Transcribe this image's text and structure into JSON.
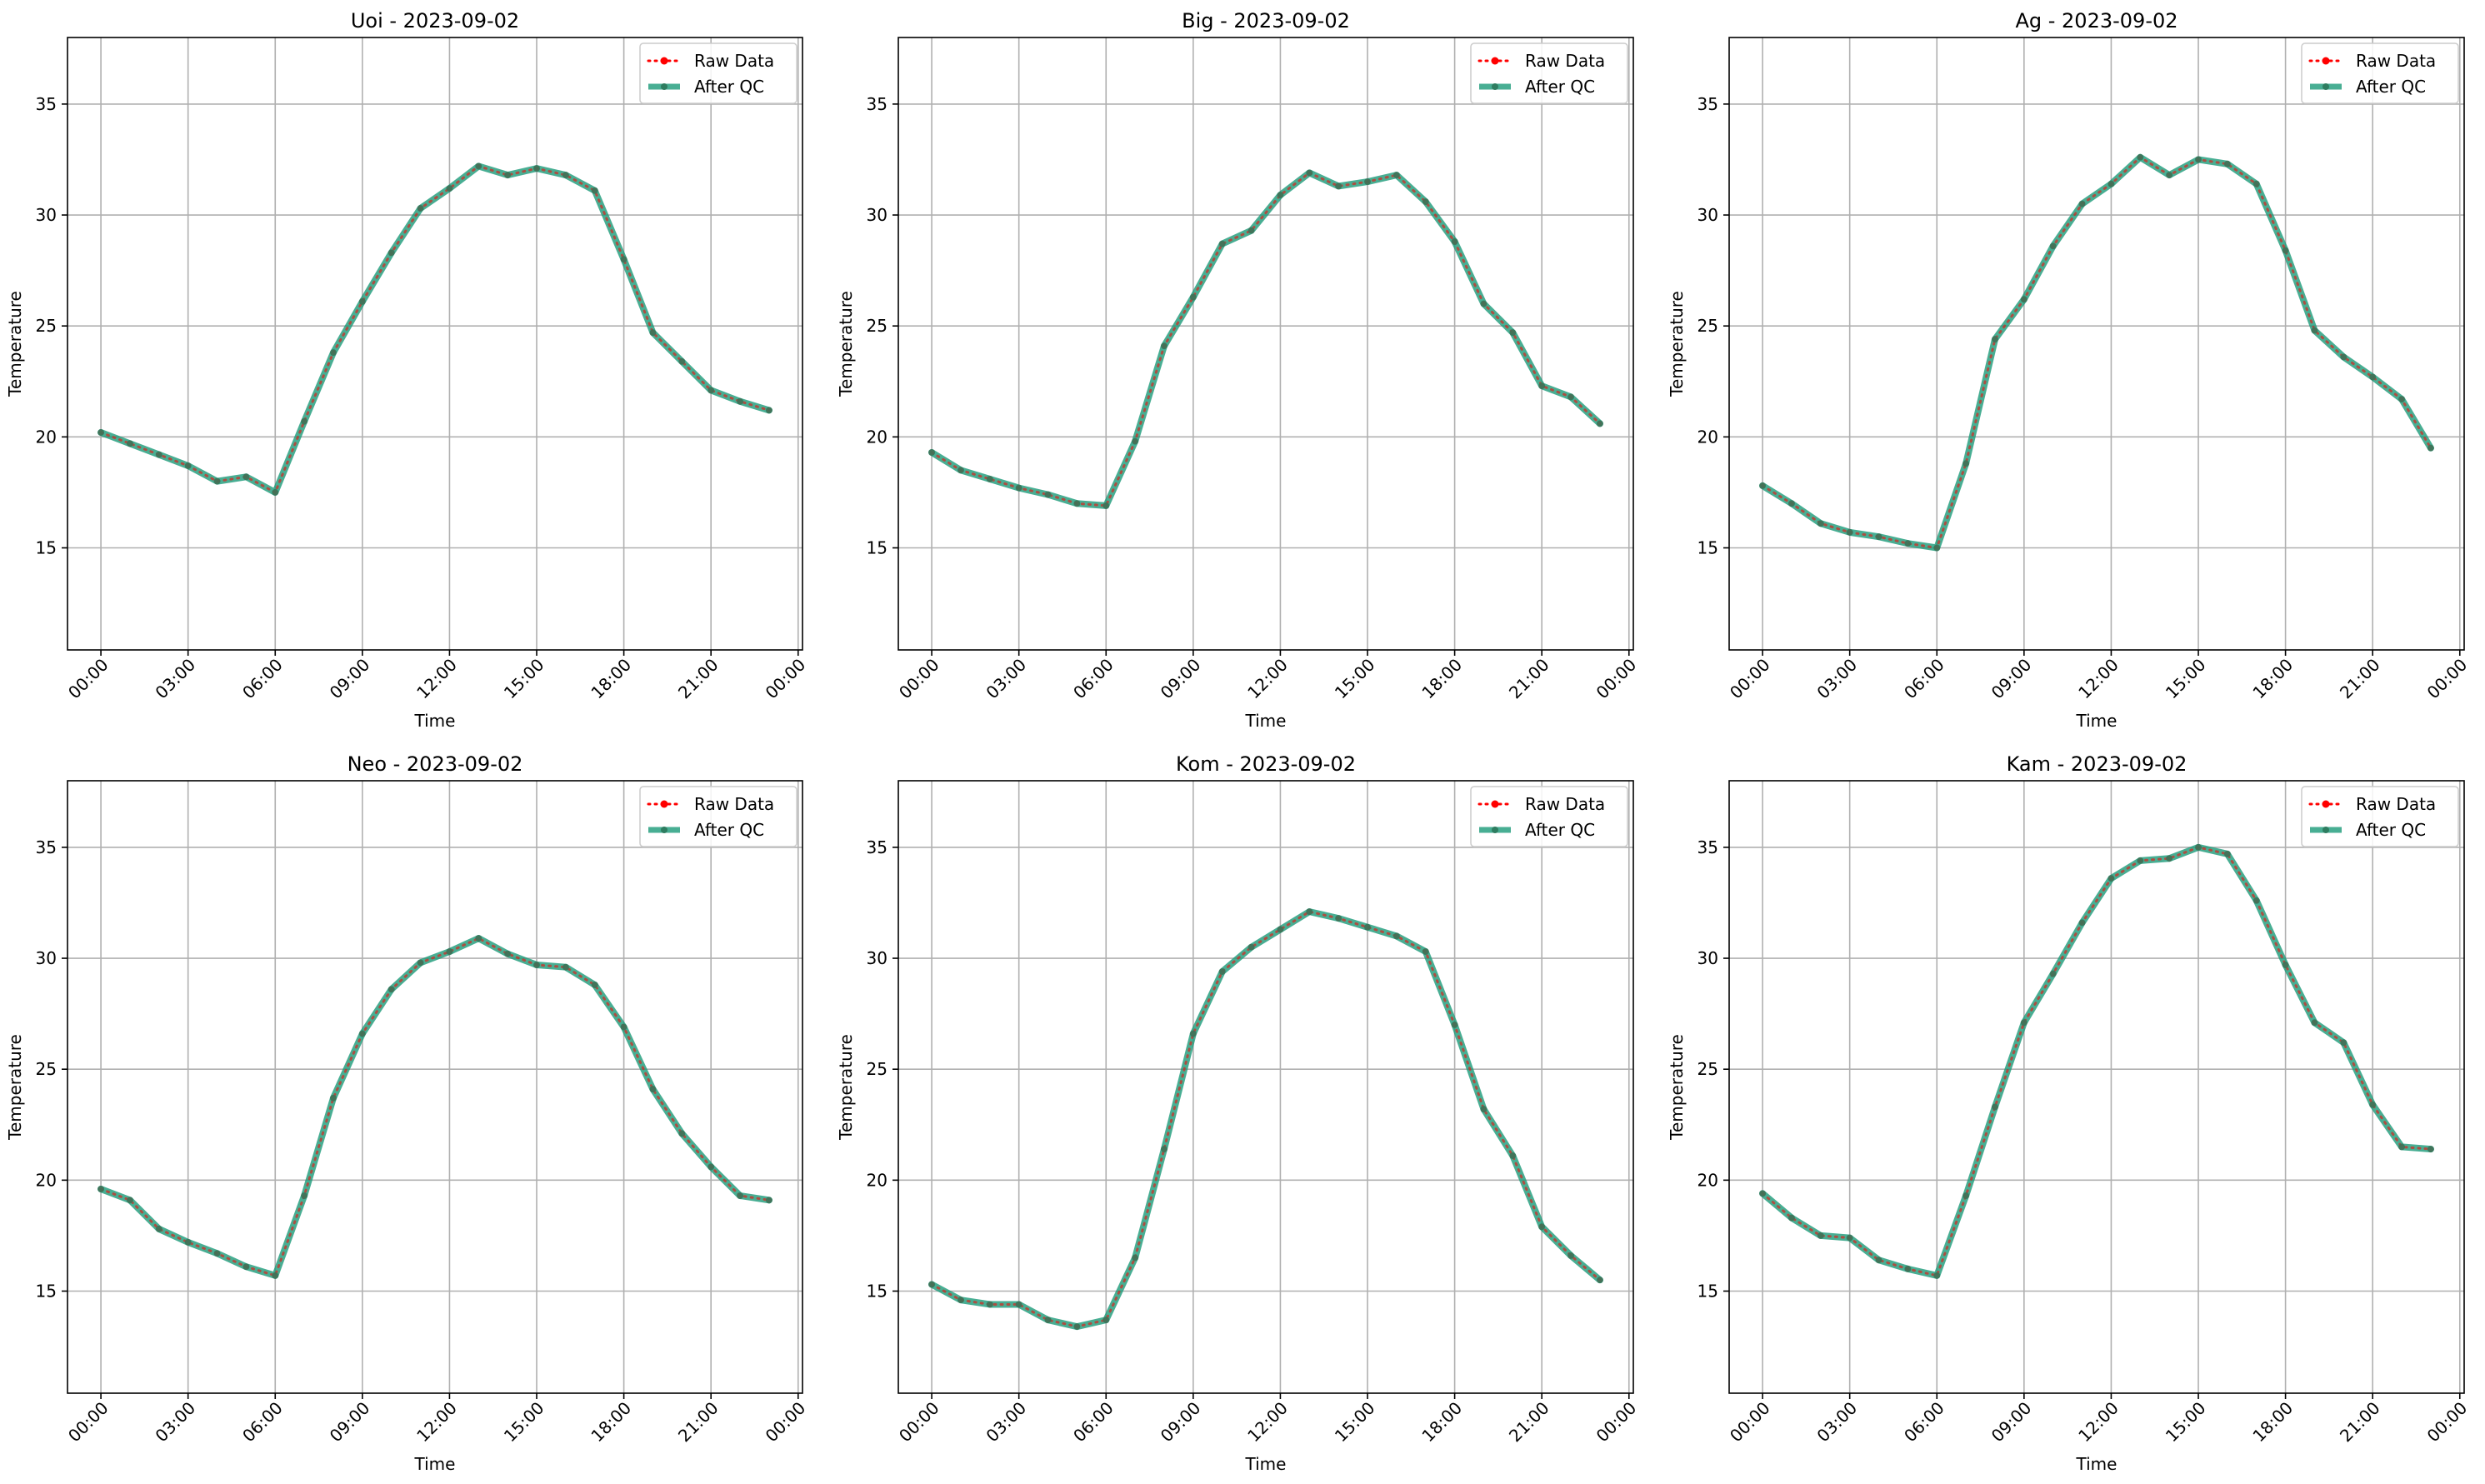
{
  "legend": {
    "raw_label": "Raw Data",
    "qc_label": "After QC",
    "raw_color": "#ff0000",
    "qc_color": "#1a9a78",
    "marker_color": "#2e7d60"
  },
  "grid": true,
  "chart_data": [
    {
      "type": "line",
      "title": "Uoi - 2023-09-02",
      "xlabel": "Time",
      "ylabel": "Temperature",
      "xlim": [
        -1.15,
        24.15
      ],
      "ylim": [
        10.4,
        38.0
      ],
      "xticks": [
        0,
        3,
        6,
        9,
        12,
        15,
        18,
        21,
        24
      ],
      "xticklabels": [
        "00:00",
        "03:00",
        "06:00",
        "09:00",
        "12:00",
        "15:00",
        "18:00",
        "21:00",
        "00:00"
      ],
      "yticks": [
        15,
        20,
        25,
        30,
        35
      ],
      "legend_position": "top-right",
      "x": [
        0,
        1,
        2,
        3,
        4,
        5,
        6,
        7,
        8,
        9,
        10,
        11,
        12,
        13,
        14,
        15,
        16,
        17,
        18,
        19,
        20,
        21,
        22,
        23
      ],
      "series": [
        {
          "name": "Raw Data",
          "values": [
            20.2,
            19.7,
            19.2,
            18.7,
            18.0,
            18.2,
            17.5,
            20.7,
            23.8,
            26.1,
            28.3,
            30.3,
            31.2,
            32.2,
            31.8,
            32.1,
            31.8,
            31.1,
            28.0,
            24.7,
            23.4,
            22.1,
            21.6,
            21.2
          ]
        },
        {
          "name": "After QC",
          "values": [
            20.2,
            19.7,
            19.2,
            18.7,
            18.0,
            18.2,
            17.5,
            20.7,
            23.8,
            26.1,
            28.3,
            30.3,
            31.2,
            32.2,
            31.8,
            32.1,
            31.8,
            31.1,
            28.0,
            24.7,
            23.4,
            22.1,
            21.6,
            21.2
          ]
        }
      ]
    },
    {
      "type": "line",
      "title": "Big - 2023-09-02",
      "xlabel": "Time",
      "ylabel": "Temperature",
      "xlim": [
        -1.15,
        24.15
      ],
      "ylim": [
        10.4,
        38.0
      ],
      "xticks": [
        0,
        3,
        6,
        9,
        12,
        15,
        18,
        21,
        24
      ],
      "xticklabels": [
        "00:00",
        "03:00",
        "06:00",
        "09:00",
        "12:00",
        "15:00",
        "18:00",
        "21:00",
        "00:00"
      ],
      "yticks": [
        15,
        20,
        25,
        30,
        35
      ],
      "legend_position": "top-right",
      "x": [
        0,
        1,
        2,
        3,
        4,
        5,
        6,
        7,
        8,
        9,
        10,
        11,
        12,
        13,
        14,
        15,
        16,
        17,
        18,
        19,
        20,
        21,
        22,
        23
      ],
      "series": [
        {
          "name": "Raw Data",
          "values": [
            19.3,
            18.5,
            18.1,
            17.7,
            17.4,
            17.0,
            16.9,
            19.8,
            24.1,
            26.3,
            28.7,
            29.3,
            30.9,
            31.9,
            31.3,
            31.5,
            31.8,
            30.6,
            28.8,
            26.0,
            24.7,
            22.3,
            21.8,
            20.6
          ]
        },
        {
          "name": "After QC",
          "values": [
            19.3,
            18.5,
            18.1,
            17.7,
            17.4,
            17.0,
            16.9,
            19.8,
            24.1,
            26.3,
            28.7,
            29.3,
            30.9,
            31.9,
            31.3,
            31.5,
            31.8,
            30.6,
            28.8,
            26.0,
            24.7,
            22.3,
            21.8,
            20.6
          ]
        }
      ]
    },
    {
      "type": "line",
      "title": "Ag - 2023-09-02",
      "xlabel": "Time",
      "ylabel": "Temperature",
      "xlim": [
        -1.15,
        24.15
      ],
      "ylim": [
        10.4,
        38.0
      ],
      "xticks": [
        0,
        3,
        6,
        9,
        12,
        15,
        18,
        21,
        24
      ],
      "xticklabels": [
        "00:00",
        "03:00",
        "06:00",
        "09:00",
        "12:00",
        "15:00",
        "18:00",
        "21:00",
        "00:00"
      ],
      "yticks": [
        15,
        20,
        25,
        30,
        35
      ],
      "legend_position": "top-right",
      "x": [
        0,
        1,
        2,
        3,
        4,
        5,
        6,
        7,
        8,
        9,
        10,
        11,
        12,
        13,
        14,
        15,
        16,
        17,
        18,
        19,
        20,
        21,
        22,
        23
      ],
      "series": [
        {
          "name": "Raw Data",
          "values": [
            17.8,
            17.0,
            16.1,
            15.7,
            15.5,
            15.2,
            15.0,
            18.8,
            24.4,
            26.2,
            28.6,
            30.5,
            31.4,
            32.6,
            31.8,
            32.5,
            32.3,
            31.4,
            28.4,
            24.8,
            23.6,
            22.7,
            21.7,
            19.5
          ]
        },
        {
          "name": "After QC",
          "values": [
            17.8,
            17.0,
            16.1,
            15.7,
            15.5,
            15.2,
            15.0,
            18.8,
            24.4,
            26.2,
            28.6,
            30.5,
            31.4,
            32.6,
            31.8,
            32.5,
            32.3,
            31.4,
            28.4,
            24.8,
            23.6,
            22.7,
            21.7,
            19.5
          ]
        }
      ]
    },
    {
      "type": "line",
      "title": "Neo - 2023-09-02",
      "xlabel": "Time",
      "ylabel": "Temperature",
      "xlim": [
        -1.15,
        24.15
      ],
      "ylim": [
        10.4,
        38.0
      ],
      "xticks": [
        0,
        3,
        6,
        9,
        12,
        15,
        18,
        21,
        24
      ],
      "xticklabels": [
        "00:00",
        "03:00",
        "06:00",
        "09:00",
        "12:00",
        "15:00",
        "18:00",
        "21:00",
        "00:00"
      ],
      "yticks": [
        15,
        20,
        25,
        30,
        35
      ],
      "legend_position": "top-right",
      "x": [
        0,
        1,
        2,
        3,
        4,
        5,
        6,
        7,
        8,
        9,
        10,
        11,
        12,
        13,
        14,
        15,
        16,
        17,
        18,
        19,
        20,
        21,
        22,
        23
      ],
      "series": [
        {
          "name": "Raw Data",
          "values": [
            19.6,
            19.1,
            17.8,
            17.2,
            16.7,
            16.1,
            15.7,
            19.3,
            23.7,
            26.6,
            28.6,
            29.8,
            30.3,
            30.9,
            30.2,
            29.7,
            29.6,
            28.8,
            26.9,
            24.1,
            22.1,
            20.6,
            19.3,
            19.1
          ]
        },
        {
          "name": "After QC",
          "values": [
            19.6,
            19.1,
            17.8,
            17.2,
            16.7,
            16.1,
            15.7,
            19.3,
            23.7,
            26.6,
            28.6,
            29.8,
            30.3,
            30.9,
            30.2,
            29.7,
            29.6,
            28.8,
            26.9,
            24.1,
            22.1,
            20.6,
            19.3,
            19.1
          ]
        }
      ]
    },
    {
      "type": "line",
      "title": "Kom - 2023-09-02",
      "xlabel": "Time",
      "ylabel": "Temperature",
      "xlim": [
        -1.15,
        24.15
      ],
      "ylim": [
        10.4,
        38.0
      ],
      "xticks": [
        0,
        3,
        6,
        9,
        12,
        15,
        18,
        21,
        24
      ],
      "xticklabels": [
        "00:00",
        "03:00",
        "06:00",
        "09:00",
        "12:00",
        "15:00",
        "18:00",
        "21:00",
        "00:00"
      ],
      "yticks": [
        15,
        20,
        25,
        30,
        35
      ],
      "legend_position": "top-right",
      "x": [
        0,
        1,
        2,
        3,
        4,
        5,
        6,
        7,
        8,
        9,
        10,
        11,
        12,
        13,
        14,
        15,
        16,
        17,
        18,
        19,
        20,
        21,
        22,
        23
      ],
      "series": [
        {
          "name": "Raw Data",
          "values": [
            15.3,
            14.6,
            14.4,
            14.4,
            13.7,
            13.4,
            13.7,
            16.5,
            21.4,
            26.6,
            29.4,
            30.5,
            31.3,
            32.1,
            31.8,
            31.4,
            31.0,
            30.3,
            27.0,
            23.2,
            21.1,
            17.9,
            16.6,
            15.5
          ]
        },
        {
          "name": "After QC",
          "values": [
            15.3,
            14.6,
            14.4,
            14.4,
            13.7,
            13.4,
            13.7,
            16.5,
            21.4,
            26.6,
            29.4,
            30.5,
            31.3,
            32.1,
            31.8,
            31.4,
            31.0,
            30.3,
            27.0,
            23.2,
            21.1,
            17.9,
            16.6,
            15.5
          ]
        }
      ]
    },
    {
      "type": "line",
      "title": "Kam - 2023-09-02",
      "xlabel": "Time",
      "ylabel": "Temperature",
      "xlim": [
        -1.15,
        24.15
      ],
      "ylim": [
        10.4,
        38.0
      ],
      "xticks": [
        0,
        3,
        6,
        9,
        12,
        15,
        18,
        21,
        24
      ],
      "xticklabels": [
        "00:00",
        "03:00",
        "06:00",
        "09:00",
        "12:00",
        "15:00",
        "18:00",
        "21:00",
        "00:00"
      ],
      "yticks": [
        15,
        20,
        25,
        30,
        35
      ],
      "legend_position": "top-right",
      "x": [
        0,
        1,
        2,
        3,
        4,
        5,
        6,
        7,
        8,
        9,
        10,
        11,
        12,
        13,
        14,
        15,
        16,
        17,
        18,
        19,
        20,
        21,
        22,
        23
      ],
      "series": [
        {
          "name": "Raw Data",
          "values": [
            19.4,
            18.3,
            17.5,
            17.4,
            16.4,
            16.0,
            15.7,
            19.3,
            23.3,
            27.1,
            29.3,
            31.6,
            33.6,
            34.4,
            34.5,
            35.0,
            34.7,
            32.6,
            29.7,
            27.1,
            26.2,
            23.4,
            21.5,
            21.4
          ]
        },
        {
          "name": "After QC",
          "values": [
            19.4,
            18.3,
            17.5,
            17.4,
            16.4,
            16.0,
            15.7,
            19.3,
            23.3,
            27.1,
            29.3,
            31.6,
            33.6,
            34.4,
            34.5,
            35.0,
            34.7,
            32.6,
            29.7,
            27.1,
            26.2,
            23.4,
            21.5,
            21.4
          ]
        }
      ]
    }
  ]
}
